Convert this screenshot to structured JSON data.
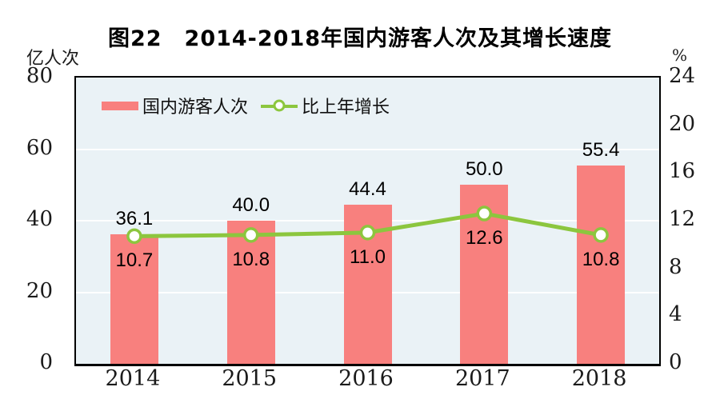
{
  "title": "图22　2014-2018年国内游客人次及其增长速度",
  "left_axis_unit": "亿人次",
  "right_axis_unit": "%",
  "legend": {
    "bar_label": "国内游客人次",
    "line_label": "比上年增长"
  },
  "colors": {
    "bar": "#F8807E",
    "line": "#8CC63E",
    "marker_fill": "#FFFFFF",
    "plot_background": "#EAF2F6",
    "gridline": "#FFFFFF",
    "plot_border": "#000000",
    "text": "#000000"
  },
  "chart_data": {
    "type": "bar",
    "subtype": "bar+line-dual-axis",
    "title": "图22　2014-2018年国内游客人次及其增长速度",
    "categories": [
      "2014",
      "2015",
      "2016",
      "2017",
      "2018"
    ],
    "series": [
      {
        "name": "国内游客人次",
        "type": "bar",
        "axis": "left",
        "values": [
          36.1,
          40.0,
          44.4,
          50.0,
          55.4
        ],
        "labels": [
          "36.1",
          "40.0",
          "44.4",
          "50.0",
          "55.4"
        ]
      },
      {
        "name": "比上年增长",
        "type": "line",
        "axis": "right",
        "values": [
          10.7,
          10.8,
          11.0,
          12.6,
          10.8
        ],
        "labels": [
          "10.7",
          "10.8",
          "11.0",
          "12.6",
          "10.8"
        ]
      }
    ],
    "left_axis": {
      "label": "亿人次",
      "min": 0,
      "max": 80,
      "ticks": [
        0,
        20,
        40,
        60,
        80
      ]
    },
    "right_axis": {
      "label": "%",
      "min": 0,
      "max": 24,
      "ticks": [
        0,
        4,
        8,
        12,
        16,
        20,
        24
      ]
    },
    "grid": true,
    "gridline_values_left_axis": [
      20,
      40,
      60
    ],
    "legend_position": "top-left-inside"
  }
}
